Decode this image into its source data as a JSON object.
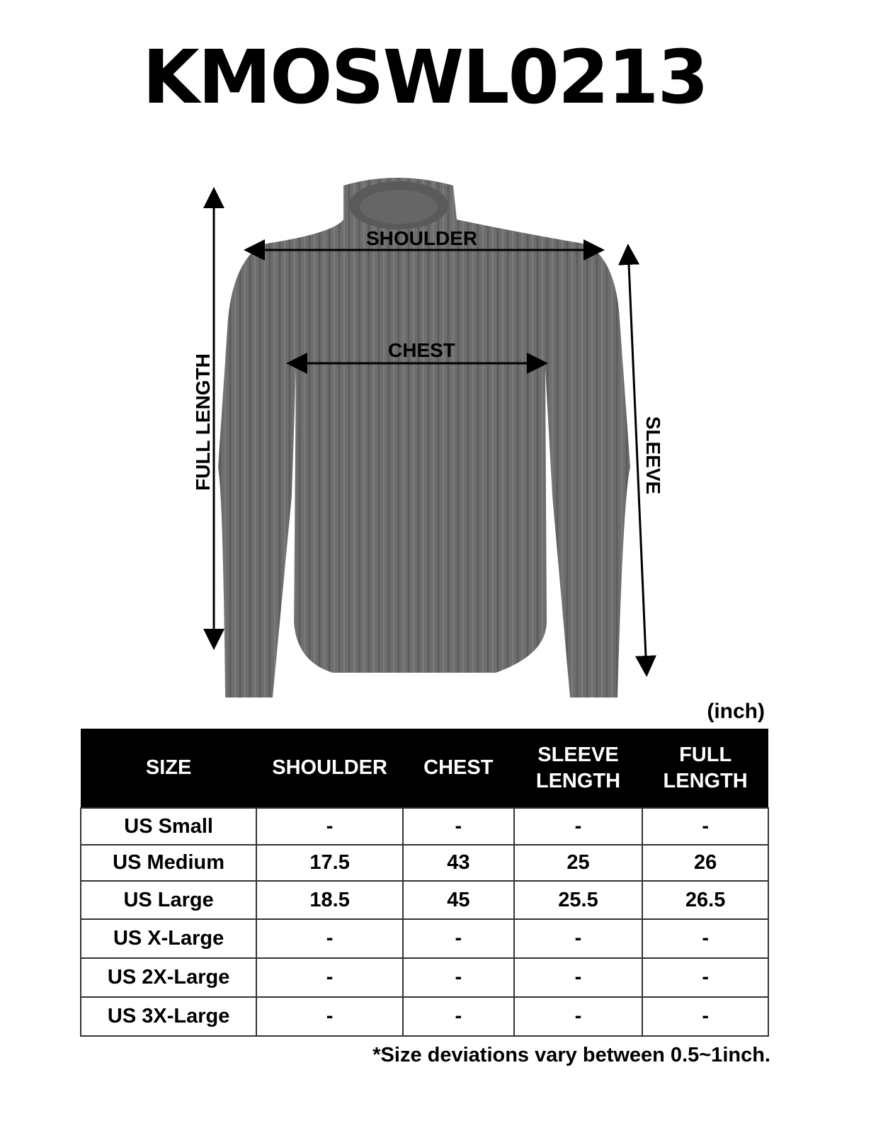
{
  "title": "KMOSWL0213",
  "diagram": {
    "shoulder_label": "SHOULDER",
    "chest_label": "CHEST",
    "full_length_label": "FULL LENGTH",
    "sleeve_label": "SLEEVE",
    "garment_color": "#6e6e6e"
  },
  "unit": "(inch)",
  "table": {
    "headers": [
      "SIZE",
      "SHOULDER",
      "CHEST",
      "SLEEVE\nLENGTH",
      "FULL\nLENGTH"
    ],
    "rows": [
      [
        "US Small",
        "-",
        "-",
        "-",
        "-"
      ],
      [
        "US Medium",
        "17.5",
        "43",
        "25",
        "26"
      ],
      [
        "US Large",
        "18.5",
        "45",
        "25.5",
        "26.5"
      ],
      [
        "US X-Large",
        "-",
        "-",
        "-",
        "-"
      ],
      [
        "US 2X-Large",
        "-",
        "-",
        "-",
        "-"
      ],
      [
        "US 3X-Large",
        "-",
        "-",
        "-",
        "-"
      ]
    ]
  },
  "note": "*Size deviations vary between 0.5~1inch."
}
